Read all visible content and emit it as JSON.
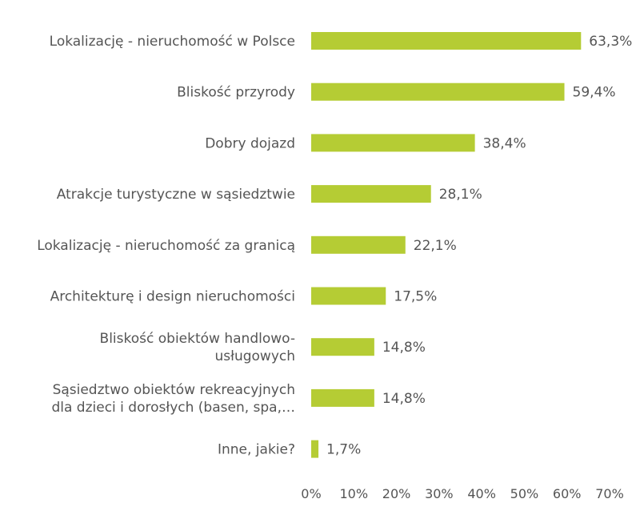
{
  "chart_data": {
    "type": "bar",
    "orientation": "horizontal",
    "categories": [
      [
        "Lokalizację - nieruchomość w Polsce"
      ],
      [
        "Bliskość przyrody"
      ],
      [
        "Dobry dojazd"
      ],
      [
        "Atrakcje turystyczne w sąsiedztwie"
      ],
      [
        "Lokalizację - nieruchomość za granicą"
      ],
      [
        "Architekturę i design nieruchomości"
      ],
      [
        "Bliskość obiektów handlowo-",
        "usługowych"
      ],
      [
        "Sąsiedztwo obiektów rekreacyjnych",
        "dla dzieci i dorosłych (basen, spa,…"
      ],
      [
        "Inne, jakie?"
      ]
    ],
    "values": [
      63.3,
      59.4,
      38.4,
      28.1,
      22.1,
      17.5,
      14.8,
      14.8,
      1.7
    ],
    "value_labels": [
      "63,3%",
      "59,4%",
      "38,4%",
      "28,1%",
      "22,1%",
      "17,5%",
      "14,8%",
      "14,8%",
      "1,7%"
    ],
    "x_ticks": [
      0,
      10,
      20,
      30,
      40,
      50,
      60,
      70
    ],
    "x_tick_labels": [
      "0%",
      "10%",
      "20%",
      "30%",
      "40%",
      "50%",
      "60%",
      "70%"
    ],
    "xlim": [
      0,
      70
    ],
    "grid": false,
    "bar_color": "#b5cc34"
  }
}
